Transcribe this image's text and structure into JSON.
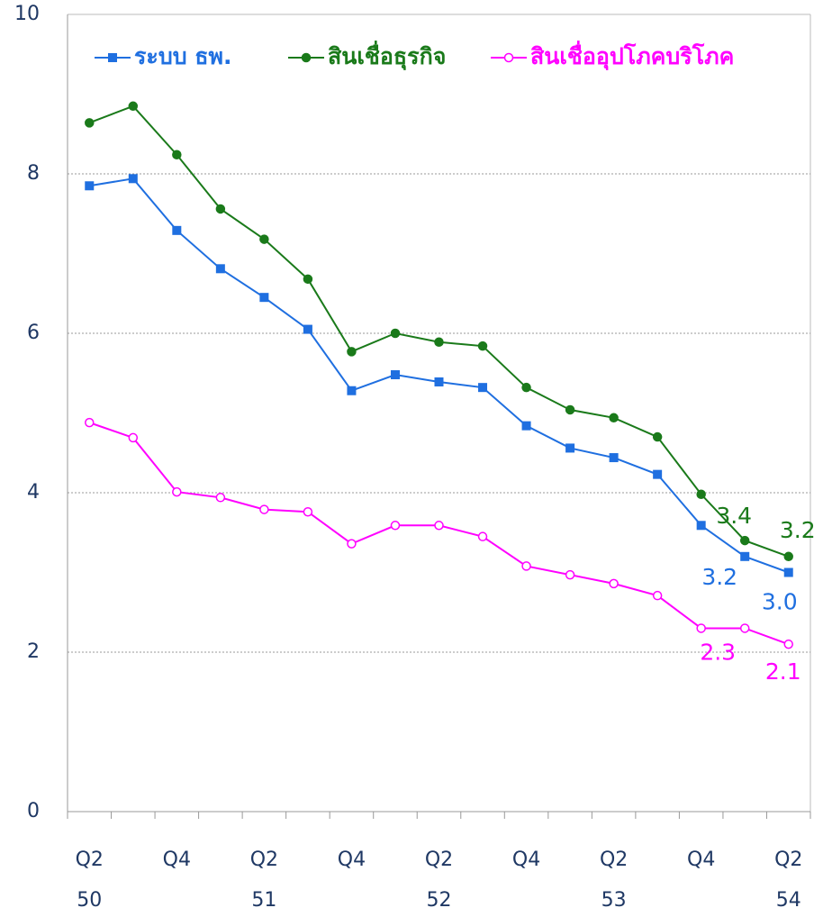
{
  "chart_data": {
    "type": "line",
    "categories": [
      "Q2",
      null,
      "Q4",
      null,
      "Q2",
      null,
      "Q4",
      null,
      "Q2",
      null,
      "Q4",
      null,
      "Q2",
      null,
      "Q4",
      null,
      "Q2"
    ],
    "category_years": [
      "50",
      null,
      null,
      null,
      "51",
      null,
      null,
      null,
      "52",
      null,
      null,
      null,
      "53",
      null,
      null,
      null,
      "54"
    ],
    "ylim": [
      0,
      10
    ],
    "yticks": [
      0,
      2,
      4,
      6,
      8,
      10
    ],
    "grid": true,
    "legend": "top",
    "series": [
      {
        "name": "ระบบ ธพ.",
        "color": "#1f6fe0",
        "marker": "square",
        "values": [
          7.85,
          7.94,
          7.29,
          6.81,
          6.45,
          6.05,
          5.28,
          5.48,
          5.39,
          5.32,
          4.84,
          4.56,
          4.44,
          4.23,
          3.59,
          3.2,
          3.0
        ],
        "value_labels": [
          null,
          null,
          null,
          null,
          null,
          null,
          null,
          null,
          null,
          null,
          null,
          null,
          null,
          null,
          null,
          "3.2",
          "3.0"
        ]
      },
      {
        "name": "สินเชื่อธุรกิจ",
        "color": "#1a7a1a",
        "marker": "circle",
        "values": [
          8.64,
          8.85,
          8.24,
          7.56,
          7.18,
          6.68,
          5.77,
          6.0,
          5.89,
          5.84,
          5.32,
          5.04,
          4.94,
          4.7,
          3.98,
          3.4,
          3.2
        ],
        "value_labels": [
          null,
          null,
          null,
          null,
          null,
          null,
          null,
          null,
          null,
          null,
          null,
          null,
          null,
          null,
          null,
          "3.4",
          "3.2"
        ]
      },
      {
        "name": "สินเชื่ออุปโภคบริโภค",
        "color": "#ff00ff",
        "marker": "open-circle",
        "values": [
          4.88,
          4.69,
          4.01,
          3.94,
          3.79,
          3.76,
          3.36,
          3.59,
          3.59,
          3.45,
          3.08,
          2.97,
          2.86,
          2.71,
          2.3,
          2.3,
          2.1
        ],
        "value_labels": [
          null,
          null,
          null,
          null,
          null,
          null,
          null,
          null,
          null,
          null,
          null,
          null,
          null,
          null,
          null,
          "2.3",
          "2.1"
        ]
      }
    ]
  }
}
